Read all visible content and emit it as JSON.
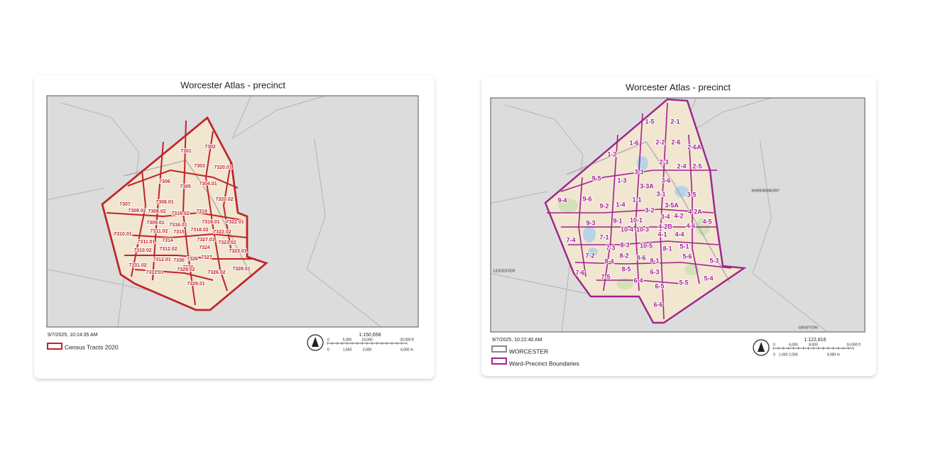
{
  "maps": [
    {
      "title": "Worcester Atlas - precinct",
      "timestamp": "9/7/2025, 10:24:35 AM",
      "legend": [
        "Census Tracts 2020"
      ],
      "scale": "1:150,658",
      "scale_ft": [
        "0",
        "5,000",
        "10,000",
        "20,000 ft"
      ],
      "scale_m": [
        "0",
        "1,500",
        "3,000",
        "6,000 m"
      ],
      "area_labels": [
        "7302",
        "7301",
        "7303",
        "7320.01",
        "7306",
        "7305",
        "7304.01",
        "7307",
        "7308.01",
        "7320.02",
        "7309.02",
        "7308.02",
        "7316.02",
        "7319",
        "7318.01",
        "7322.01",
        "7309.01",
        "7316.01",
        "7310.01",
        "7311.02",
        "7315",
        "7318.02",
        "7322.02",
        "7311.01",
        "7314",
        "7327.01",
        "7323.02",
        "7310.02",
        "7312.02",
        "7324",
        "7323.01",
        "7312.01",
        "7330",
        "7326",
        "7327",
        "7331.02",
        "7325",
        "7328.01",
        "7331.01",
        "7329.02",
        "7326.02",
        "7329.01"
      ]
    },
    {
      "title": "Worcester Atlas - precinct",
      "timestamp": "9/7/2025, 10:22:40 AM",
      "legend": [
        "WORCESTER",
        "Ward-Precinct Boundaries"
      ],
      "scale": "1:122,816",
      "scale_ft": [
        "0",
        "4,000",
        "8,000",
        "16,000 ft"
      ],
      "scale_m": [
        "0",
        "1,000",
        "2,000",
        "4,000 m"
      ],
      "place_labels": [
        "SHREWSBURY",
        "LEICESTER",
        "GRAFTON"
      ],
      "area_labels": [
        "1-5",
        "2-1",
        "1-6",
        "2-2",
        "2-6",
        "2-6A",
        "1-2",
        "2-3",
        "2-4",
        "2-5",
        "3-3",
        "1-3",
        "3-6",
        "9-5",
        "3-3A",
        "3-1",
        "3-5",
        "9-4",
        "9-6",
        "1-1",
        "9-2",
        "1-4",
        "3-5A",
        "3-2",
        "4-2A",
        "3-4",
        "4-2",
        "4-5",
        "9-1",
        "10-1",
        "9-3",
        "4-2B",
        "4-6",
        "10-4",
        "10-3",
        "7-1",
        "4-1",
        "4-4",
        "7-4",
        "8-3",
        "10-5",
        "7-3",
        "8-1",
        "5-1",
        "7-2",
        "8-2",
        "8-6",
        "8-1",
        "5-6",
        "5-3",
        "8-4",
        "8-5",
        "6-3",
        "7-6",
        "7-5",
        "6-4",
        "5-5",
        "5-4",
        "6-5",
        "6-6"
      ]
    }
  ]
}
